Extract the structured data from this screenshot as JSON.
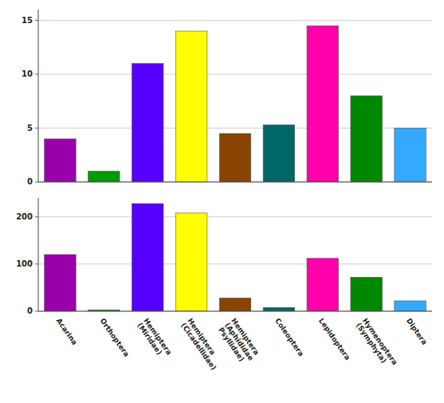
{
  "chart_data": [
    {
      "type": "bar",
      "categories": [
        "Acarina",
        "Orthoptera",
        "Hemiptera\n(Miridae)",
        "Hemiptera\n(Cicadellidae)",
        "Hemiptera\n(Aphididae\nPsyllidae)",
        "Coleoptera",
        "Lepidoptera",
        "Hymenoptera\n(Symphyta)",
        "Diptera"
      ],
      "values": [
        4,
        1,
        11,
        14,
        4.5,
        5.3,
        14.5,
        8,
        5
      ],
      "colors": [
        "#9900AA",
        "#009900",
        "#5500FF",
        "#FFFF00",
        "#884400",
        "#006666",
        "#FF00AA",
        "#008800",
        "#33AAFF"
      ],
      "ylim": [
        0,
        16
      ],
      "yticks": [
        0,
        5,
        10,
        15
      ],
      "grid": true,
      "tick_labels": "y"
    },
    {
      "type": "bar",
      "categories": [
        "Acarina",
        "Orthoptera",
        "Hemiptera\n(Miridae)",
        "Hemiptera\n(Cicadellidae)",
        "Hemiptera\n(Aphididae\nPsyllidae)",
        "Coleoptera",
        "Lepidoptera",
        "Hymenoptera\n(Symphyta)",
        "Diptera"
      ],
      "values": [
        120,
        3,
        228,
        208,
        28,
        8,
        112,
        72,
        22
      ],
      "colors": [
        "#9900AA",
        "#009900",
        "#5500FF",
        "#FFFF00",
        "#884400",
        "#006666",
        "#FF00AA",
        "#008800",
        "#33AAFF"
      ],
      "ylim": [
        0,
        240
      ],
      "yticks": [
        0,
        100,
        200
      ],
      "grid": true
    }
  ]
}
